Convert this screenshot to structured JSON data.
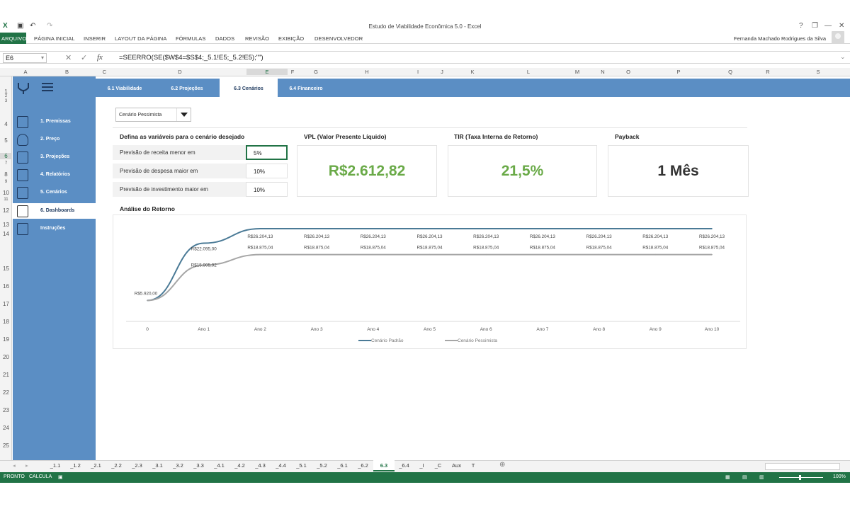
{
  "window": {
    "title": "Estudo de Viabilidade Econômica 5.0 - Excel",
    "help": "?",
    "minimize": "—",
    "restore": "❐",
    "close": "✕"
  },
  "ribbon": {
    "file": "ARQUIVO",
    "tabs": [
      "PÁGINA INICIAL",
      "INSERIR",
      "LAYOUT DA PÁGINA",
      "FÓRMULAS",
      "DADOS",
      "REVISÃO",
      "EXIBIÇÃO",
      "DESENVOLVEDOR"
    ],
    "user": "Fernanda Machado Rodrigues da Silva"
  },
  "formula_bar": {
    "name_box": "E6",
    "fx": "fx",
    "formula": "=SEERRO(SE($W$4=$S$4;_5.1!E5;_5.2!E5);\"\")"
  },
  "columns": [
    "A",
    "B",
    "C",
    "D",
    "E",
    "F",
    "G",
    "H",
    "I",
    "J",
    "K",
    "L",
    "M",
    "N",
    "O",
    "P",
    "Q",
    "R",
    "S"
  ],
  "rows": [
    "1",
    "2",
    "3",
    "4",
    "5",
    "6",
    "7",
    "8",
    "9",
    "10",
    "11",
    "12",
    "13",
    "14",
    "15",
    "16",
    "17",
    "18",
    "19",
    "20",
    "21",
    "22",
    "23",
    "24",
    "25"
  ],
  "sidebar": {
    "items": [
      {
        "label": "1. Premissas",
        "icon": "document-icon"
      },
      {
        "label": "2. Preço",
        "icon": "money-bag-icon"
      },
      {
        "label": "3. Projeções",
        "icon": "projection-icon"
      },
      {
        "label": "4. Relatórios",
        "icon": "report-icon"
      },
      {
        "label": "5. Cenários",
        "icon": "scenario-icon"
      },
      {
        "label": "6. Dashboards",
        "icon": "dashboard-icon"
      },
      {
        "label": "Instruções",
        "icon": "instructions-icon"
      }
    ]
  },
  "nav_tabs": [
    "6.1 Viabilidade",
    "6.2 Projeções",
    "6.3 Cenários",
    "6.4 Financeiro"
  ],
  "scenario_select": {
    "value": "Cenário Pessimista"
  },
  "variables": {
    "title": "Defina as variáveis para o cenário desejado",
    "rows": [
      {
        "label": "Previsão de receita menor em",
        "value": "5%"
      },
      {
        "label": "Previsão de despesa maior em",
        "value": "10%"
      },
      {
        "label": "Previsão de investimento maior em",
        "value": "10%"
      }
    ]
  },
  "kpis": {
    "vpl": {
      "title": "VPL (Valor Presente Líquido)",
      "value": "R$2.612,82",
      "color": "#6aaa48"
    },
    "tir": {
      "title": "TIR (Taxa Interna de Retorno)",
      "value": "21,5%",
      "color": "#6aaa48"
    },
    "payback": {
      "title": "Payback",
      "value": "1 Mês",
      "color": "#333333"
    }
  },
  "chart_title": "Análise do Retorno",
  "chart_data": {
    "type": "line",
    "categories": [
      "0",
      "Ano 1",
      "Ano 2",
      "Ano 3",
      "Ano 4",
      "Ano 5",
      "Ano 6",
      "Ano 7",
      "Ano 8",
      "Ano 9",
      "Ano 10"
    ],
    "series": [
      {
        "name": "Cenário Padrão",
        "color": "#4a7a96",
        "values": [
          5920.0,
          22095.0,
          26204.13,
          26204.13,
          26204.13,
          26204.13,
          26204.13,
          26204.13,
          26204.13,
          26204.13,
          26204.13
        ]
      },
      {
        "name": "Cenário Pessimista",
        "color": "#a6a6a6",
        "values": [
          5920.0,
          15905.92,
          18875.04,
          18875.04,
          18875.04,
          18875.04,
          18875.04,
          18875.04,
          18875.04,
          18875.04,
          18875.04
        ]
      }
    ],
    "labels_padrao": [
      "R$5.920,00",
      "R$22.095,00",
      "R$26.204,13",
      "R$26.204,13",
      "R$26.204,13",
      "R$26.204,13",
      "R$26.204,13",
      "R$26.204,13",
      "R$26.204,13",
      "R$26.204,13",
      "R$26.204,13"
    ],
    "labels_pessimista": [
      "",
      "R$15.905,92",
      "R$18.875,04",
      "R$18.875,04",
      "R$18.875,04",
      "R$18.875,04",
      "R$18.875,04",
      "R$18.875,04",
      "R$18.875,04",
      "R$18.875,04",
      "R$18.875,04"
    ],
    "ylim": [
      0,
      30000
    ],
    "grid": false,
    "legend": "bottom"
  },
  "sheet_tabs": [
    "_1.1",
    "_1.2",
    "_2.1",
    "_2.2",
    "_2.3",
    "_3.1",
    "_3.2",
    "_3.3",
    "_4.1",
    "_4.2",
    "_4.3",
    "_4.4",
    "_5.1",
    "_5.2",
    "_6.1",
    "_6.2",
    "6.3",
    "_6.4",
    "_I",
    "_C",
    "Aux",
    "T"
  ],
  "status": {
    "ready": "PRONTO",
    "calc": "CALCULA",
    "zoom": "100%"
  }
}
